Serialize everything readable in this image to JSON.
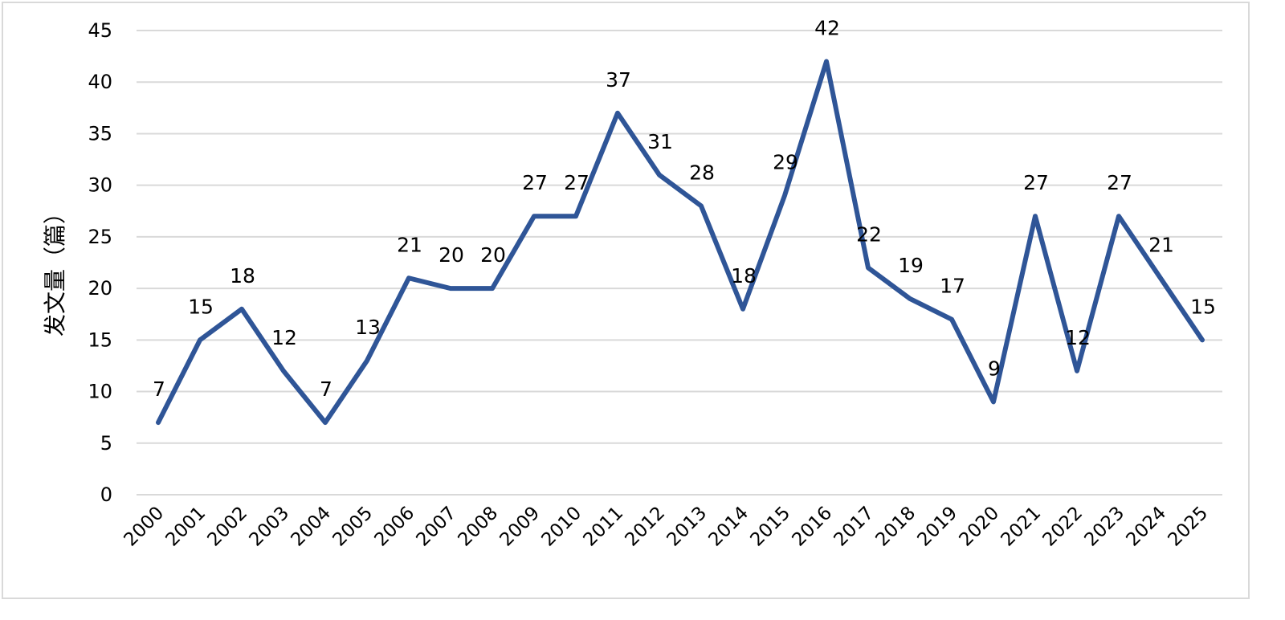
{
  "chart_data": {
    "type": "line",
    "categories": [
      "2000",
      "2001",
      "2002",
      "2003",
      "2004",
      "2005",
      "2006",
      "2007",
      "2008",
      "2009",
      "2010",
      "2011",
      "2012",
      "2013",
      "2014",
      "2015",
      "2016",
      "2017",
      "2018",
      "2019",
      "2020",
      "2021",
      "2022",
      "2023",
      "2024",
      "2025"
    ],
    "series": [
      {
        "values": [
          7,
          15,
          18,
          12,
          7,
          13,
          21,
          20,
          20,
          27,
          27,
          37,
          31,
          28,
          18,
          29,
          42,
          22,
          19,
          17,
          9,
          27,
          12,
          27,
          21,
          15
        ]
      }
    ],
    "ylabel": "发文量（篇）",
    "ylim": [
      0,
      45
    ],
    "yticks": [
      "0",
      "5",
      "10",
      "15",
      "20",
      "25",
      "30",
      "35",
      "40",
      "45"
    ],
    "grid": true,
    "data_labels": true,
    "colors": {
      "line": "#2f5597",
      "grid": "#d9d9d9"
    }
  }
}
